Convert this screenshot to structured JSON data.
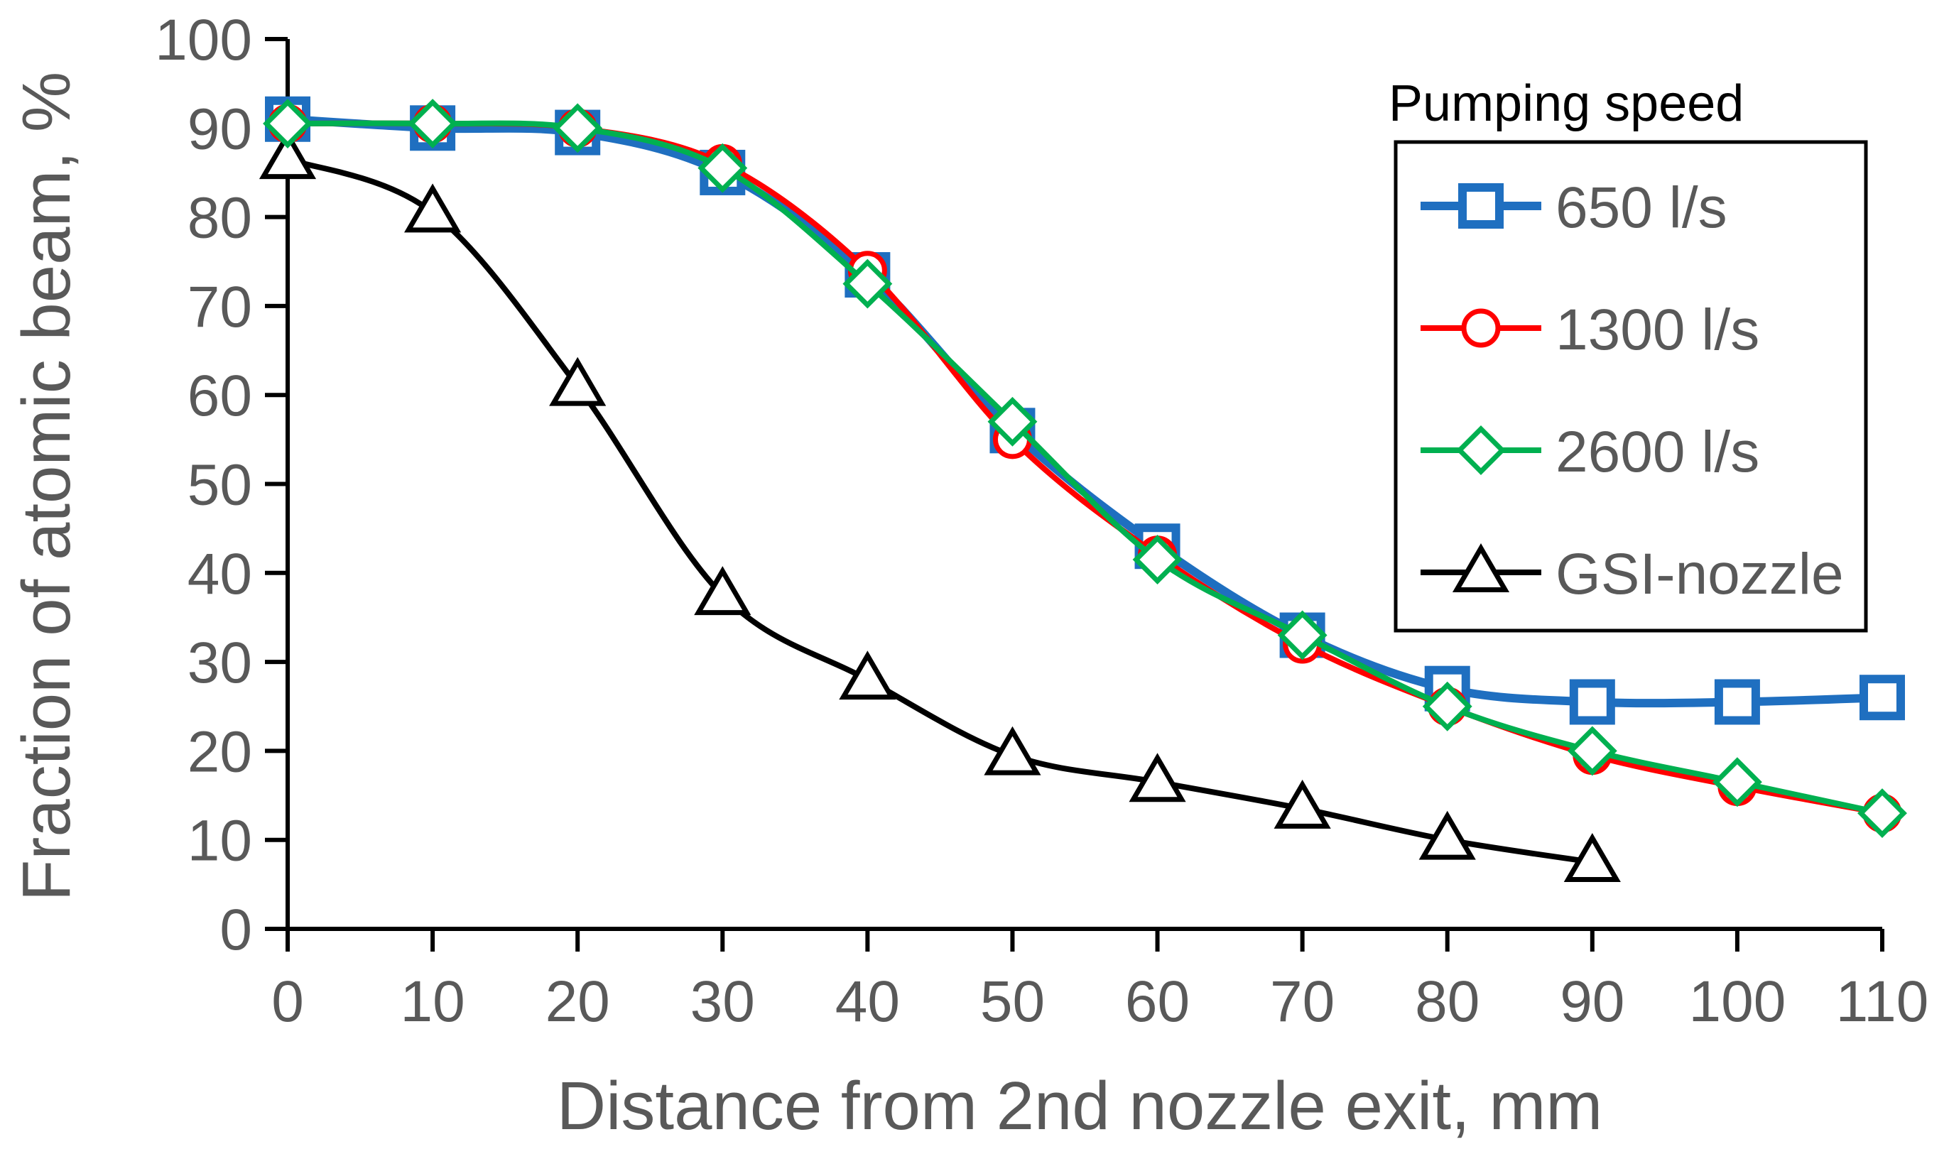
{
  "chart_data": {
    "type": "line",
    "xlabel": "Distance from 2nd nozzle exit, mm",
    "ylabel": "Fraction of atomic beam, %",
    "xlim": [
      0,
      110
    ],
    "ylim": [
      0,
      100
    ],
    "x_ticks": [
      "0",
      "10",
      "20",
      "30",
      "40",
      "50",
      "60",
      "70",
      "80",
      "90",
      "100",
      "110"
    ],
    "y_ticks": [
      "0",
      "10",
      "20",
      "30",
      "40",
      "50",
      "60",
      "70",
      "80",
      "90",
      "100"
    ],
    "grid": false,
    "legend": {
      "title": "Pumping speed",
      "placement": "top-right"
    },
    "series": [
      {
        "name": "650 l/s",
        "color": "#1f6fc0",
        "marker": "square",
        "x": [
          0,
          10,
          20,
          30,
          40,
          50,
          60,
          70,
          80,
          90,
          100,
          110
        ],
        "y": [
          91,
          90,
          89.5,
          85,
          73.5,
          56,
          43,
          33,
          27,
          25.5,
          25.5,
          26
        ]
      },
      {
        "name": "1300 l/s",
        "color": "#ff0000",
        "marker": "circle",
        "x": [
          0,
          10,
          20,
          30,
          40,
          50,
          60,
          70,
          80,
          90,
          100,
          110
        ],
        "y": [
          90.5,
          90.5,
          90,
          86,
          74,
          55,
          42,
          32,
          25,
          19.5,
          16,
          13
        ]
      },
      {
        "name": "2600 l/s",
        "color": "#00b050",
        "marker": "diamond",
        "x": [
          0,
          10,
          20,
          30,
          40,
          50,
          60,
          70,
          80,
          90,
          100,
          110
        ],
        "y": [
          90.5,
          90.5,
          90,
          85.5,
          72.5,
          57,
          41.5,
          33,
          25,
          20,
          16.5,
          13
        ]
      },
      {
        "name": "GSI-nozzle",
        "color": "#000000",
        "marker": "triangle",
        "x": [
          0,
          10,
          20,
          30,
          40,
          50,
          60,
          70,
          80,
          90
        ],
        "y": [
          86.5,
          80.5,
          61,
          37.5,
          28,
          19.5,
          16.5,
          13.5,
          10,
          7.5
        ]
      }
    ]
  }
}
